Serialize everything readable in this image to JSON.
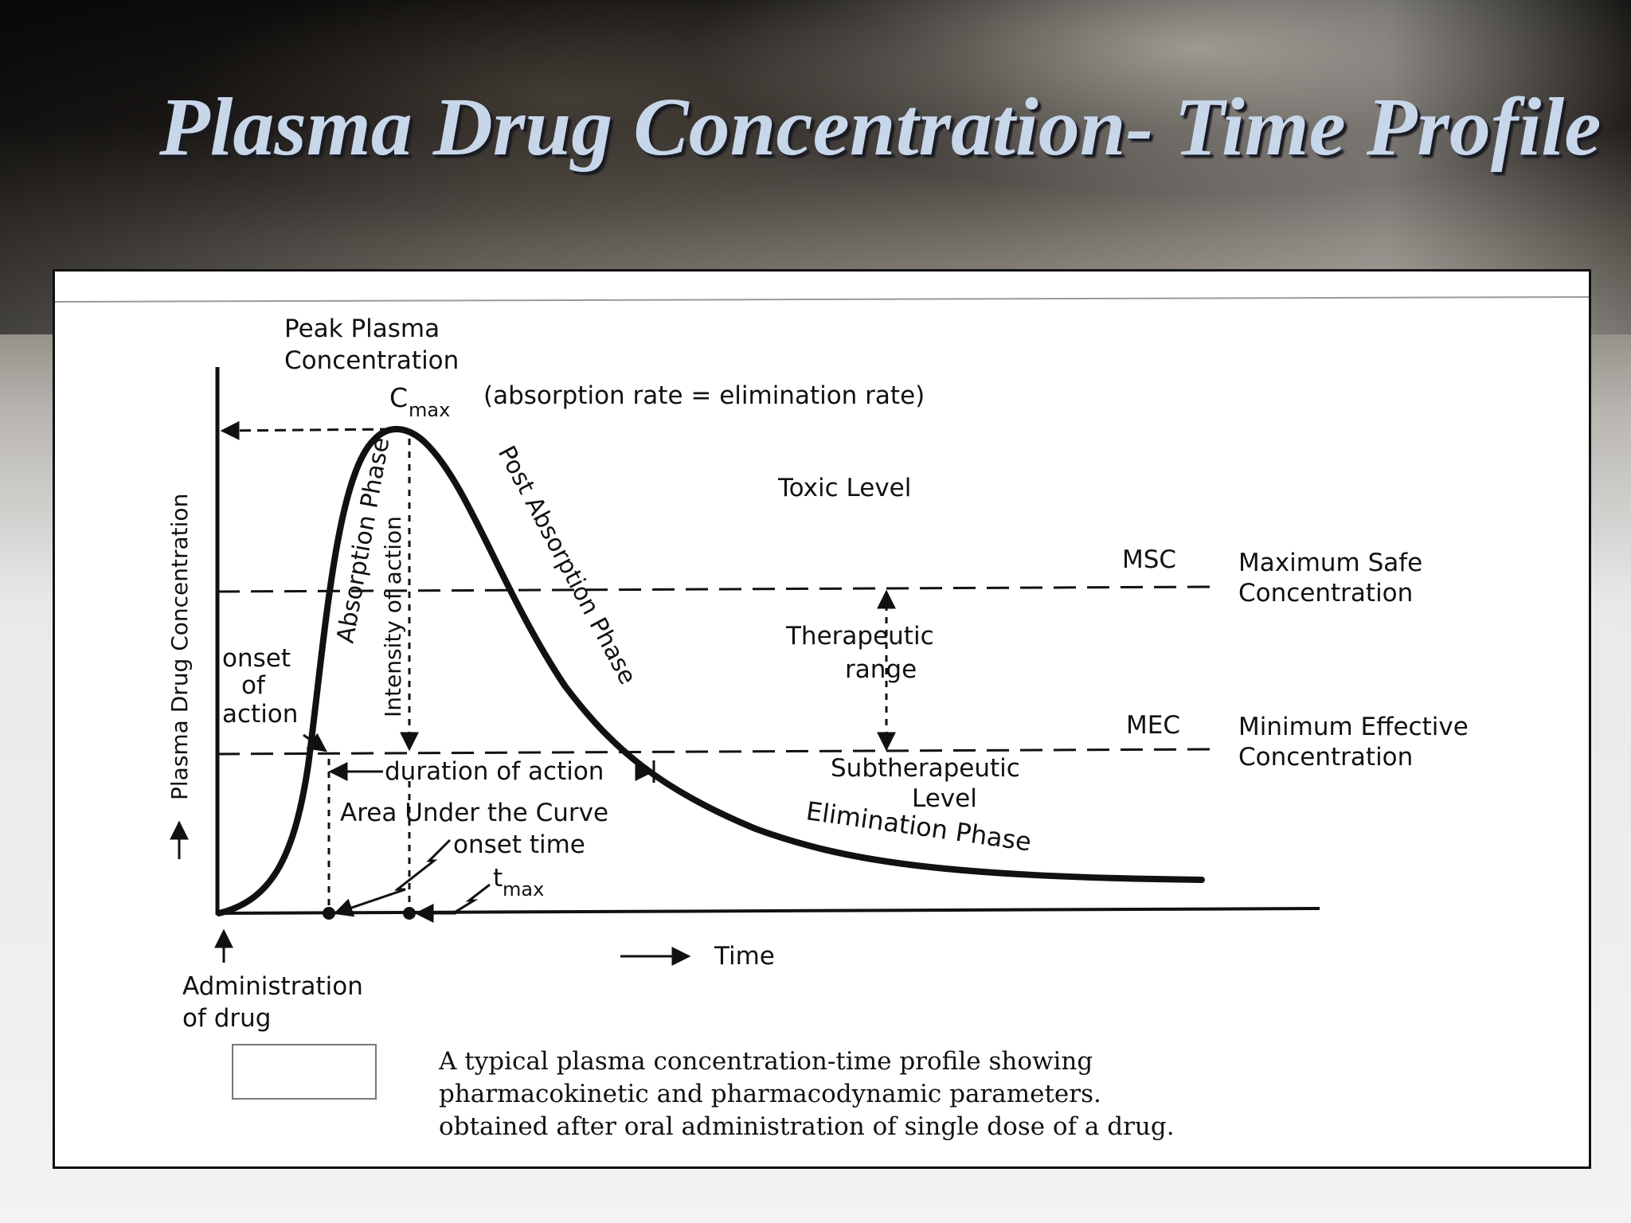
{
  "title": "Plasma Drug Concentration- Time Profile",
  "diagram": {
    "peak_label_1": "Peak Plasma",
    "peak_label_2": "Concentration",
    "cmax_c": "C",
    "cmax_sub": "max",
    "cmax_note": "(absorption rate = elimination rate)",
    "toxic_level": "Toxic Level",
    "msc": "MSC",
    "msc_full_1": "Maximum Safe",
    "msc_full_2": "Concentration",
    "therapeutic_1": "Therapeutic",
    "therapeutic_2": "range",
    "mec": "MEC",
    "mec_full_1": "Minimum Effective",
    "mec_full_2": "Concentration",
    "subtherapeutic_1": "Subtherapeutic",
    "subtherapeutic_2": "Level",
    "elimination_phase": "Elimination Phase",
    "absorption_phase": "Absorption Phase",
    "post_absorption_phase": "Post Absorption Phase",
    "intensity_of_action": "Intensity of action",
    "y_axis_label": "Plasma Drug Concentration",
    "onset_1": "onset",
    "onset_2": "of",
    "onset_3": "action",
    "duration_of_action": "duration of action",
    "auc": "Area Under the Curve",
    "onset_time": "onset time",
    "tmax_t": "t",
    "tmax_sub": "max",
    "x_axis_label": "Time",
    "admin_1": "Administration",
    "admin_2": "of drug",
    "arrow_glyph_up": "↑"
  },
  "caption": {
    "line1": "A typical plasma concentration-time profile showing",
    "line2": "pharmacokinetic and pharmacodynamic parameters.",
    "line3": "obtained after oral administration of single dose of a drug."
  }
}
